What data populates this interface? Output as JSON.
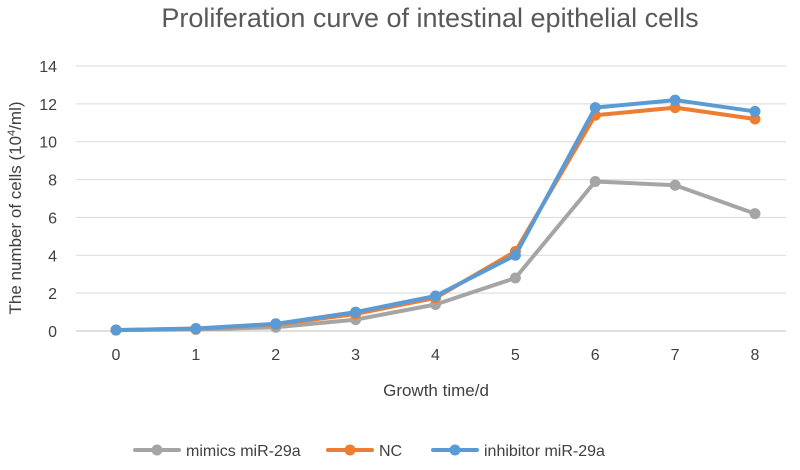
{
  "chart_data": {
    "type": "line",
    "title": "Proliferation curve of intestinal epithelial cells",
    "xlabel": "Growth time/d",
    "ylabel": "The number of cells (10",
    "ylabel_exponent": "4",
    "ylabel_suffix": "/ml)",
    "x": [
      0,
      1,
      2,
      3,
      4,
      5,
      6,
      7,
      8
    ],
    "x_tick_labels": [
      "0",
      "1",
      "2",
      "3",
      "4",
      "5",
      "6",
      "7",
      "8"
    ],
    "ylim": [
      0,
      14
    ],
    "y_ticks": [
      0,
      2,
      4,
      6,
      8,
      10,
      12,
      14
    ],
    "y_tick_labels": [
      "0",
      "2",
      "4",
      "6",
      "8",
      "10",
      "12",
      "14"
    ],
    "grid": true,
    "legend_position": "bottom",
    "series": [
      {
        "name": "mimics miR-29a",
        "color": "#A5A5A5",
        "values": [
          0.05,
          0.08,
          0.2,
          0.6,
          1.4,
          2.8,
          7.9,
          7.7,
          6.2
        ]
      },
      {
        "name": "NC",
        "color": "#ED7D31",
        "values": [
          0.05,
          0.12,
          0.35,
          0.9,
          1.75,
          4.2,
          11.4,
          11.8,
          11.2
        ]
      },
      {
        "name": "inhibitor miR-29a",
        "color": "#5B9BD5",
        "values": [
          0.05,
          0.13,
          0.38,
          1.0,
          1.85,
          4.0,
          11.8,
          12.2,
          11.6
        ]
      }
    ]
  }
}
